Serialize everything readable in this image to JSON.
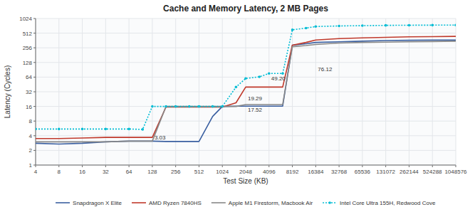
{
  "chart_data": {
    "type": "line",
    "title": "Cache and Memory Latency, 2 MB Pages",
    "x_label": "Test Size (KB)",
    "y_label": "Latency (Cycles)",
    "log": true,
    "grid": true,
    "legend": "bottom",
    "xlim": [
      4,
      1048576
    ],
    "ylim": [
      1,
      1024
    ],
    "xticks": [
      4,
      8,
      16,
      32,
      64,
      128,
      256,
      512,
      1024,
      2048,
      4096,
      8192,
      16384,
      32768,
      65536,
      131072,
      262144,
      524288,
      1048576
    ],
    "yticks": [
      1,
      2,
      4,
      8,
      16,
      32,
      64,
      128,
      256,
      512,
      1024
    ],
    "annotations": [
      {
        "x": 128,
        "y": 3.03,
        "text": "3.03"
      },
      {
        "x": 2048,
        "y": 19.29,
        "text": "19.29"
      },
      {
        "x": 4096,
        "y": 49.2,
        "text": "49.20"
      },
      {
        "x": 2048,
        "y": 17.52,
        "text": "17.52"
      },
      {
        "x": 16384,
        "y": 76.12,
        "text": "76.12"
      }
    ],
    "x": [
      4,
      8,
      16,
      32,
      64,
      96,
      128,
      192,
      256,
      384,
      512,
      768,
      1024,
      1536,
      2048,
      3072,
      4096,
      6144,
      8192,
      12288,
      16384,
      32768,
      65536,
      131072,
      262144,
      524288,
      1048576
    ],
    "series": [
      {
        "name": "Snapdragon X Elite",
        "color": "#3a5fa0",
        "line_style": "solid",
        "values": [
          2.8,
          2.7,
          2.8,
          3.0,
          3.1,
          3.1,
          3.1,
          3.05,
          3.05,
          3.05,
          3.05,
          10.0,
          16.0,
          16.2,
          16.2,
          16.2,
          16.2,
          16.2,
          290,
          310,
          330,
          340,
          350,
          360,
          365,
          368,
          370
        ]
      },
      {
        "name": "AMD Ryzen 7840HS",
        "color": "#c0392b",
        "line_style": "solid",
        "values": [
          3.5,
          3.5,
          3.6,
          3.7,
          3.7,
          3.7,
          3.7,
          15.5,
          15.5,
          15.5,
          15.5,
          15.5,
          15.5,
          19.0,
          40.0,
          40.0,
          40.0,
          40.0,
          290,
          330,
          370,
          395,
          410,
          420,
          430,
          435,
          440
        ]
      },
      {
        "name": "Apple M1 Firestorm, Macbook Air",
        "color": "#888888",
        "line_style": "solid",
        "values": [
          3.0,
          3.0,
          3.0,
          3.0,
          3.1,
          3.1,
          3.1,
          16.0,
          16.0,
          16.0,
          16.0,
          16.0,
          16.0,
          16.0,
          17.5,
          17.5,
          17.5,
          17.5,
          270,
          285,
          300,
          320,
          330,
          335,
          340,
          345,
          350
        ]
      },
      {
        "name": "Intel Core Ultra 155H, Redwood Cove",
        "color": "#00bcd4",
        "line_style": "dotted",
        "marker": "circle",
        "values": [
          5.5,
          5.5,
          5.5,
          5.5,
          5.5,
          5.4,
          16.0,
          16.0,
          16.0,
          16.0,
          16.0,
          16.0,
          16.0,
          40.0,
          60.0,
          65.0,
          76.0,
          76.0,
          600,
          650,
          700,
          720,
          730,
          740,
          745,
          748,
          750
        ]
      }
    ]
  }
}
